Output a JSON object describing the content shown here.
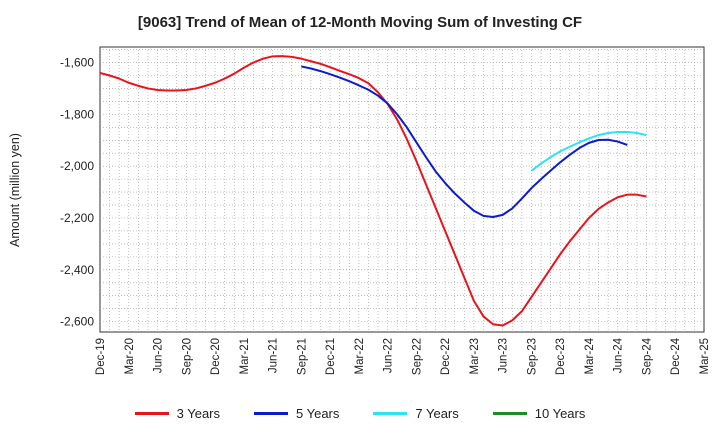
{
  "chart_data": {
    "type": "line",
    "title": "[9063]  Trend of Mean of 12-Month Moving Sum of Investing CF",
    "xlabel": "",
    "ylabel": "Amount (million yen)",
    "ylim": [
      -2640,
      -1540
    ],
    "yticks": [
      -1600,
      -1800,
      -2000,
      -2200,
      -2400,
      -2600
    ],
    "ytick_labels": [
      "-1,600",
      "-1,800",
      "-2,000",
      "-2,200",
      "-2,400",
      "-2,600"
    ],
    "x_tick_labels": [
      "Dec-19",
      "Mar-20",
      "Jun-20",
      "Sep-20",
      "Dec-20",
      "Mar-21",
      "Jun-21",
      "Sep-21",
      "Dec-21",
      "Mar-22",
      "Jun-22",
      "Sep-22",
      "Dec-22",
      "Mar-23",
      "Jun-23",
      "Sep-23",
      "Dec-23",
      "Mar-24",
      "Jun-24",
      "Sep-24",
      "Dec-24",
      "Mar-25"
    ],
    "x_months_total": 63,
    "series": [
      {
        "name": "3 Years",
        "color": "#e8141c",
        "start_month_index": 0,
        "values": [
          -1640,
          -1650,
          -1662,
          -1678,
          -1690,
          -1700,
          -1706,
          -1708,
          -1708,
          -1706,
          -1700,
          -1690,
          -1678,
          -1662,
          -1643,
          -1620,
          -1600,
          -1585,
          -1576,
          -1575,
          -1578,
          -1585,
          -1595,
          -1605,
          -1618,
          -1632,
          -1645,
          -1660,
          -1680,
          -1715,
          -1760,
          -1820,
          -1895,
          -1980,
          -2070,
          -2160,
          -2250,
          -2340,
          -2430,
          -2520,
          -2580,
          -2610,
          -2615,
          -2595,
          -2560,
          -2505,
          -2450,
          -2395,
          -2340,
          -2290,
          -2245,
          -2200,
          -2165,
          -2140,
          -2120,
          -2110,
          -2110,
          -2117
        ]
      },
      {
        "name": "5 Years",
        "color": "#0b1ccc",
        "start_month_index": 21,
        "values": [
          -1615,
          -1623,
          -1633,
          -1645,
          -1658,
          -1672,
          -1688,
          -1705,
          -1728,
          -1758,
          -1800,
          -1850,
          -1908,
          -1965,
          -2020,
          -2065,
          -2105,
          -2140,
          -2172,
          -2192,
          -2196,
          -2188,
          -2163,
          -2125,
          -2085,
          -2050,
          -2017,
          -1985,
          -1956,
          -1930,
          -1910,
          -1899,
          -1898,
          -1905,
          -1918
        ]
      },
      {
        "name": "7 Years",
        "color": "#2ee3ef",
        "start_month_index": 45,
        "values": [
          -2018,
          -1990,
          -1965,
          -1943,
          -1925,
          -1908,
          -1893,
          -1880,
          -1872,
          -1868,
          -1868,
          -1872,
          -1880
        ]
      },
      {
        "name": "10 Years",
        "color": "#1f8a2a",
        "start_month_index": 0,
        "values": []
      }
    ]
  },
  "legend": [
    {
      "label": "3 Years",
      "color": "#e8141c"
    },
    {
      "label": "5 Years",
      "color": "#0b1ccc"
    },
    {
      "label": "7 Years",
      "color": "#2ee3ef"
    },
    {
      "label": "10 Years",
      "color": "#1f8a2a"
    }
  ]
}
